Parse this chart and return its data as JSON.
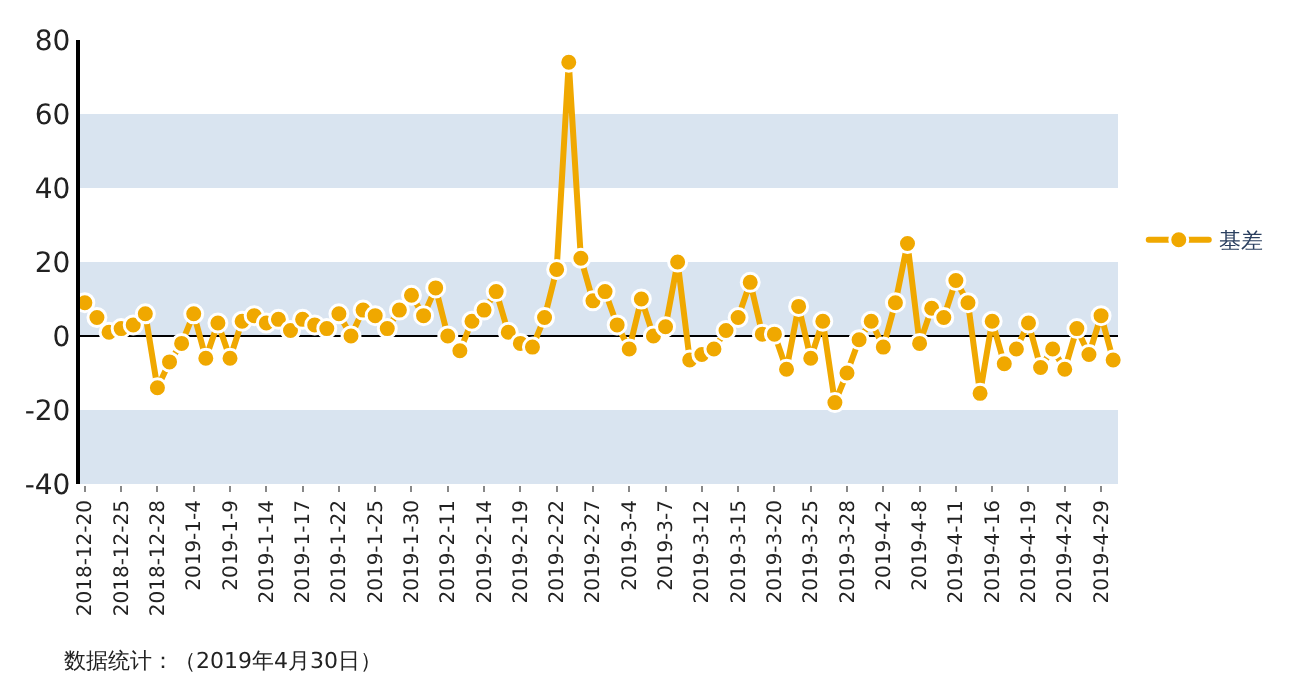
{
  "chart_data": {
    "type": "line",
    "categories": [
      "2018-12-20",
      null,
      null,
      "2018-12-25",
      null,
      null,
      "2018-12-28",
      null,
      null,
      "2019-1-4",
      null,
      null,
      "2019-1-9",
      null,
      null,
      "2019-1-14",
      null,
      null,
      "2019-1-17",
      null,
      null,
      "2019-1-22",
      null,
      null,
      "2019-1-25",
      null,
      null,
      "2019-1-30",
      null,
      null,
      "2019-2-11",
      null,
      null,
      "2019-2-14",
      null,
      null,
      "2019-2-19",
      null,
      null,
      "2019-2-22",
      null,
      null,
      "2019-2-27",
      null,
      null,
      "2019-3-4",
      null,
      null,
      "2019-3-7",
      null,
      null,
      "2019-3-12",
      null,
      null,
      "2019-3-15",
      null,
      null,
      "2019-3-20",
      null,
      null,
      "2019-3-25",
      null,
      null,
      "2019-3-28",
      null,
      null,
      "2019-4-2",
      null,
      null,
      "2019-4-8",
      null,
      null,
      "2019-4-11",
      null,
      null,
      "2019-4-16",
      null,
      null,
      "2019-4-19",
      null,
      null,
      "2019-4-24",
      null,
      null,
      "2019-4-29",
      null
    ],
    "series": [
      {
        "name": "基差",
        "color": "#f0a800",
        "values": [
          9,
          5,
          1,
          2,
          3,
          6,
          -14,
          -7,
          -2,
          6,
          -6,
          3.5,
          -6,
          4,
          5.5,
          3.5,
          4.5,
          1.5,
          4.5,
          3,
          2,
          6,
          0,
          7,
          5.5,
          2,
          7,
          11,
          5.5,
          13,
          0,
          -4,
          4,
          7,
          12,
          1,
          -2,
          -3,
          5,
          18,
          74,
          21,
          9.5,
          12,
          3,
          -3.5,
          10,
          0,
          2.5,
          20,
          -6.5,
          -5,
          -3.5,
          1.5,
          5,
          14.5,
          0.5,
          0.5,
          -9,
          8,
          -6,
          4,
          -18,
          -10,
          -1,
          4,
          -3,
          9,
          25,
          -2,
          7.5,
          5,
          15,
          9,
          -15.5,
          4,
          -7.5,
          -3.5,
          3.5,
          -8.5,
          -3.5,
          -9,
          2,
          -5,
          5.5,
          -6.5
        ]
      }
    ],
    "ylim": [
      -40,
      80
    ],
    "yticks": [
      -40,
      -20,
      0,
      20,
      40,
      60,
      80
    ],
    "bands": [
      {
        "axis": "y",
        "from": 40,
        "to": 60,
        "color": "#d9e4f0"
      },
      {
        "axis": "y",
        "from": 0,
        "to": 20,
        "color": "#d9e4f0"
      },
      {
        "axis": "y",
        "from": -40,
        "to": -20,
        "color": "#d9e4f0"
      }
    ],
    "ref_lines": [
      {
        "axis": "y",
        "value": 0,
        "color": "#000000",
        "line_style": "solid"
      }
    ],
    "marker": "circle",
    "line_style": "solid",
    "grid": false,
    "legend": "right",
    "annotations": [
      "数据统计：（2019年4月30日）"
    ]
  }
}
